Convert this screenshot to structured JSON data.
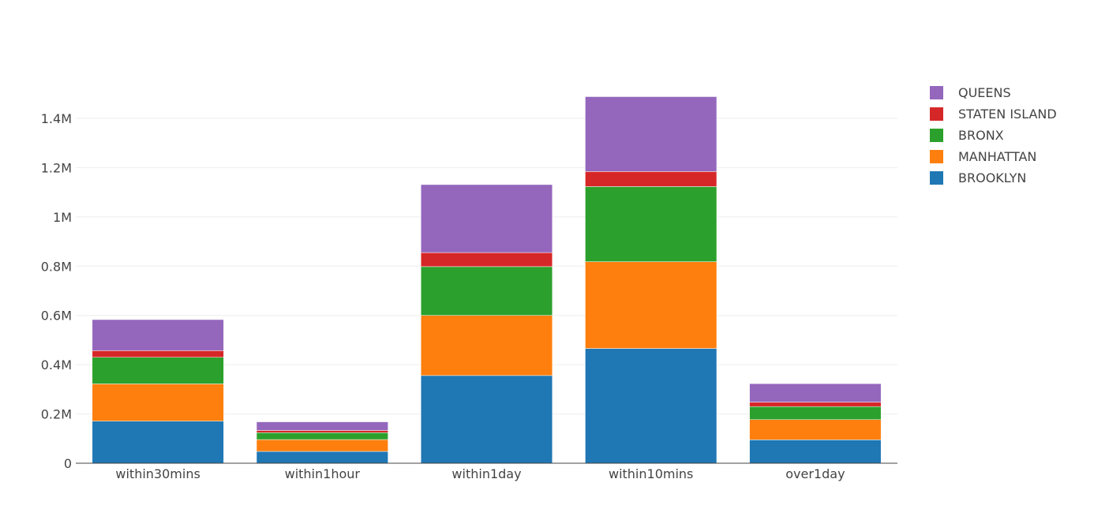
{
  "chart_data": {
    "type": "bar",
    "stacked": true,
    "categories": [
      "within30mins",
      "within1hour",
      "within1day",
      "within10mins",
      "over1day"
    ],
    "series": [
      {
        "name": "BROOKLYN",
        "color": "#1f77b4",
        "values": [
          171000,
          48000,
          356000,
          466000,
          95000
        ]
      },
      {
        "name": "MANHATTAN",
        "color": "#ff7f0e",
        "values": [
          151000,
          48000,
          244000,
          352000,
          82000
        ]
      },
      {
        "name": "BRONX",
        "color": "#2ca02c",
        "values": [
          108000,
          28000,
          198000,
          305000,
          53000
        ]
      },
      {
        "name": "STATEN ISLAND",
        "color": "#d62728",
        "values": [
          27000,
          9000,
          57000,
          61000,
          18000
        ]
      },
      {
        "name": "QUEENS",
        "color": "#9467bd",
        "values": [
          126000,
          35000,
          276000,
          304000,
          75000
        ]
      }
    ],
    "yticks": [
      {
        "value": 0,
        "label": "0"
      },
      {
        "value": 200000,
        "label": "0.2M"
      },
      {
        "value": 400000,
        "label": "0.4M"
      },
      {
        "value": 600000,
        "label": "0.6M"
      },
      {
        "value": 800000,
        "label": "0.8M"
      },
      {
        "value": 1000000,
        "label": "1M"
      },
      {
        "value": 1200000,
        "label": "1.2M"
      },
      {
        "value": 1400000,
        "label": "1.4M"
      }
    ],
    "ylim": [
      0,
      1560000
    ],
    "title": "",
    "xlabel": "",
    "ylabel": "",
    "grid": true,
    "legend_position": "top-right"
  }
}
